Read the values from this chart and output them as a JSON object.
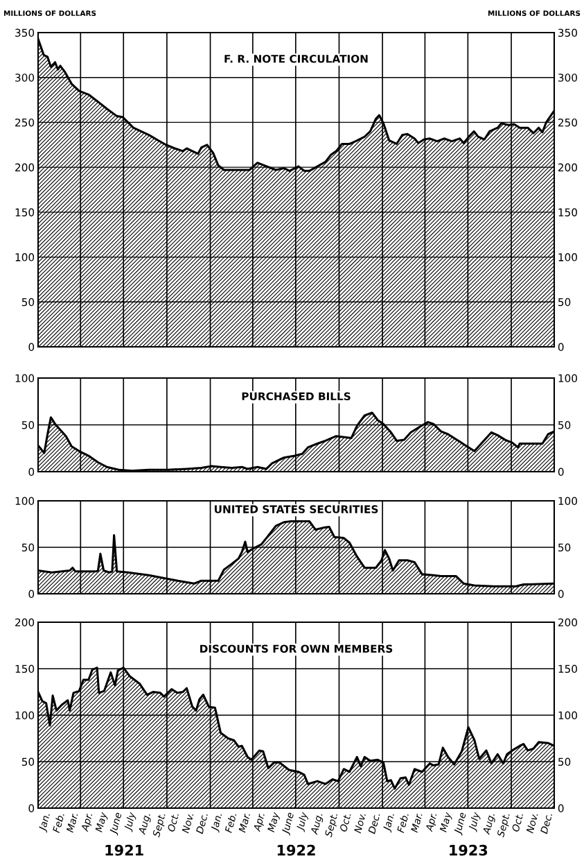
{
  "chart_data": [
    {
      "type": "area",
      "title": "F. R. NOTE CIRCULATION",
      "ylabel": "MILLIONS OF DOLLARS",
      "y2label": "MILLIONS OF DOLLARS",
      "series": [
        {
          "color": "#000000",
          "x": [
            "1921-01-01",
            "1921-01-13",
            "1921-01-21",
            "1921-01-28",
            "1921-02-06",
            "1921-02-12",
            "1921-02-17",
            "1921-02-27",
            "1921-03-13",
            "1921-03-29",
            "1921-04-18",
            "1921-05-08",
            "1921-05-27",
            "1921-06-17",
            "1921-06-29",
            "1921-07-22",
            "1921-08-24",
            "1921-09-09",
            "1921-09-29",
            "1921-10-18",
            "1921-11-04",
            "1921-11-12",
            "1921-11-24",
            "1921-12-06",
            "1921-12-13",
            "1921-12-25",
            "1922-01-07",
            "1922-01-18",
            "1922-01-30",
            "1922-02-24",
            "1922-03-25",
            "1922-04-11",
            "1922-04-26",
            "1922-05-20",
            "1922-06-06",
            "1922-06-18",
            "1922-07-07",
            "1922-07-19",
            "1922-07-30",
            "1922-08-16",
            "1922-09-02",
            "1922-09-14",
            "1922-09-25",
            "1922-10-07",
            "1922-10-23",
            "1922-11-05",
            "1922-11-24",
            "1922-12-06",
            "1922-12-18",
            "1922-12-25",
            "1923-01-03",
            "1923-01-15",
            "1923-01-31",
            "1923-02-12",
            "1923-02-23",
            "1923-03-10",
            "1923-03-18",
            "1923-03-30",
            "1923-04-11",
            "1923-04-27",
            "1923-05-12",
            "1923-05-28",
            "1923-06-14",
            "1923-06-22",
            "1923-07-03",
            "1923-07-14",
            "1923-07-23",
            "1923-08-05",
            "1923-08-16",
            "1923-09-02",
            "1923-09-10",
            "1923-09-25",
            "1923-10-07",
            "1923-10-19",
            "1923-11-05",
            "1923-11-17",
            "1923-11-28",
            "1923-12-06",
            "1923-12-14",
            "1923-12-31"
          ],
          "values": [
            343,
            325,
            323,
            312,
            317,
            309,
            313,
            306,
            293,
            285,
            281,
            273,
            265,
            257,
            256,
            244,
            236,
            231,
            225,
            221,
            218,
            221,
            218,
            215,
            222,
            225,
            216,
            202,
            197,
            197,
            197,
            205,
            202,
            197,
            199,
            196,
            201,
            196,
            196,
            201,
            206,
            214,
            218,
            226,
            226,
            229,
            234,
            240,
            254,
            258,
            249,
            230,
            226,
            236,
            237,
            232,
            227,
            231,
            232,
            229,
            232,
            229,
            232,
            227,
            234,
            240,
            234,
            231,
            240,
            244,
            249,
            247,
            248,
            244,
            244,
            238,
            244,
            239,
            250,
            263
          ]
        }
      ],
      "xlim": [
        "1921-01-01",
        "1923-12-31"
      ],
      "ylim": [
        0,
        350
      ],
      "yticks": [
        0,
        50,
        100,
        150,
        200,
        250,
        300,
        350
      ],
      "y2lim": [
        0,
        350
      ],
      "y2ticks": [
        0,
        50,
        100,
        150,
        200,
        250,
        300,
        350
      ],
      "tick_labels": "y",
      "grid": "y",
      "ref_lines": [
        {
          "axis": "x",
          "value": "1921-04-01"
        },
        {
          "axis": "x",
          "value": "1921-07-01"
        },
        {
          "axis": "x",
          "value": "1921-10-01"
        },
        {
          "axis": "x",
          "value": "1922-01-01"
        },
        {
          "axis": "x",
          "value": "1922-04-01"
        },
        {
          "axis": "x",
          "value": "1922-07-01"
        },
        {
          "axis": "x",
          "value": "1922-10-01"
        },
        {
          "axis": "x",
          "value": "1923-01-01"
        },
        {
          "axis": "x",
          "value": "1923-04-01"
        },
        {
          "axis": "x",
          "value": "1923-07-01"
        },
        {
          "axis": "x",
          "value": "1923-10-01"
        }
      ]
    },
    {
      "type": "area",
      "title": "PURCHASED BILLS",
      "series": [
        {
          "color": "#000000",
          "x": [
            "1921-01-01",
            "1921-01-14",
            "1921-01-21",
            "1921-01-28",
            "1921-02-06",
            "1921-02-20",
            "1921-03-01",
            "1921-03-13",
            "1921-03-29",
            "1921-04-18",
            "1921-05-08",
            "1921-05-27",
            "1921-06-21",
            "1921-07-22",
            "1921-08-24",
            "1921-10-03",
            "1921-11-12",
            "1921-12-13",
            "1922-01-04",
            "1922-01-23",
            "1922-02-16",
            "1922-03-09",
            "1922-03-21",
            "1922-04-11",
            "1922-04-30",
            "1922-05-12",
            "1922-06-06",
            "1922-06-29",
            "1922-07-15",
            "1922-07-27",
            "1922-08-16",
            "1922-09-02",
            "1922-09-25",
            "1922-10-27",
            "1922-11-08",
            "1922-11-24",
            "1922-12-10",
            "1922-12-22",
            "1923-01-03",
            "1923-01-19",
            "1923-01-31",
            "1923-02-16",
            "1923-03-02",
            "1923-03-18",
            "1923-04-07",
            "1923-04-19",
            "1923-05-05",
            "1923-05-20",
            "1923-06-14",
            "1923-06-29",
            "1923-07-15",
            "1923-07-31",
            "1923-08-20",
            "1923-09-02",
            "1923-09-18",
            "1923-10-03",
            "1923-10-15",
            "1923-10-19",
            "1923-11-05",
            "1923-11-20",
            "1923-12-06",
            "1923-12-18",
            "1923-12-31"
          ],
          "values": [
            28,
            20,
            40,
            58,
            51,
            43,
            38,
            27,
            22,
            17,
            10,
            5,
            2,
            1,
            2,
            2,
            3,
            4,
            6,
            5,
            4,
            5,
            3,
            5,
            3,
            9,
            15,
            17,
            19,
            26,
            30,
            33,
            38,
            36,
            49,
            60,
            63,
            55,
            51,
            42,
            33,
            34,
            42,
            47,
            53,
            51,
            43,
            40,
            32,
            27,
            22,
            31,
            42,
            39,
            34,
            31,
            26,
            30,
            30,
            30,
            30,
            40,
            43
          ]
        }
      ],
      "xlim": [
        "1921-01-01",
        "1923-12-31"
      ],
      "ylim": [
        0,
        100
      ],
      "yticks": [
        0,
        50,
        100
      ],
      "y2lim": [
        0,
        100
      ],
      "y2ticks": [
        0,
        50,
        100
      ],
      "tick_labels": "y",
      "grid": "y",
      "ref_lines": [
        {
          "axis": "x",
          "value": "1921-04-01"
        },
        {
          "axis": "x",
          "value": "1921-07-01"
        },
        {
          "axis": "x",
          "value": "1921-10-01"
        },
        {
          "axis": "x",
          "value": "1922-01-01"
        },
        {
          "axis": "x",
          "value": "1922-04-01"
        },
        {
          "axis": "x",
          "value": "1922-07-01"
        },
        {
          "axis": "x",
          "value": "1922-10-01"
        },
        {
          "axis": "x",
          "value": "1923-01-01"
        },
        {
          "axis": "x",
          "value": "1923-04-01"
        },
        {
          "axis": "x",
          "value": "1923-07-01"
        },
        {
          "axis": "x",
          "value": "1923-10-01"
        }
      ]
    },
    {
      "type": "area",
      "title": "UNITED STATES SECURITIES",
      "series": [
        {
          "color": "#000000",
          "x": [
            "1921-01-01",
            "1921-01-30",
            "1921-03-09",
            "1921-03-15",
            "1921-03-21",
            "1921-05-04",
            "1921-05-08",
            "1921-05-13",
            "1921-05-20",
            "1921-06-01",
            "1921-06-07",
            "1921-06-11",
            "1921-06-17",
            "1921-07-11",
            "1921-08-24",
            "1921-10-03",
            "1921-11-04",
            "1921-11-28",
            "1921-12-13",
            "1922-01-18",
            "1922-01-30",
            "1922-02-15",
            "1922-03-02",
            "1922-03-09",
            "1922-03-16",
            "1922-03-21",
            "1922-04-03",
            "1922-04-19",
            "1922-04-30",
            "1922-05-20",
            "1922-06-06",
            "1922-06-21",
            "1922-07-07",
            "1922-07-30",
            "1922-08-12",
            "1922-08-28",
            "1922-09-10",
            "1922-09-21",
            "1922-10-11",
            "1922-10-23",
            "1922-11-08",
            "1922-11-24",
            "1922-12-18",
            "1922-12-30",
            "1923-01-06",
            "1923-01-15",
            "1923-01-23",
            "1923-02-05",
            "1923-02-23",
            "1923-03-10",
            "1923-03-26",
            "1923-04-19",
            "1923-05-05",
            "1923-06-06",
            "1923-06-22",
            "1923-07-15",
            "1923-08-25",
            "1923-10-11",
            "1923-10-27",
            "1923-12-31"
          ],
          "values": [
            25,
            23,
            25,
            28,
            24,
            24,
            25,
            43,
            25,
            23,
            24,
            63,
            24,
            23,
            20,
            16,
            13,
            11,
            14,
            14,
            26,
            32,
            38,
            45,
            56,
            45,
            49,
            53,
            60,
            73,
            77,
            78,
            78,
            78,
            69,
            71,
            72,
            61,
            60,
            55,
            40,
            28,
            28,
            36,
            47,
            38,
            25,
            36,
            36,
            34,
            21,
            20,
            19,
            19,
            11,
            9,
            8,
            8,
            10,
            11
          ]
        }
      ],
      "xlim": [
        "1921-01-01",
        "1923-12-31"
      ],
      "ylim": [
        0,
        100
      ],
      "yticks": [
        0,
        50,
        100
      ],
      "y2lim": [
        0,
        100
      ],
      "y2ticks": [
        0,
        50,
        100
      ],
      "tick_labels": "y",
      "grid": "y",
      "ref_lines": [
        {
          "axis": "x",
          "value": "1921-04-01"
        },
        {
          "axis": "x",
          "value": "1921-07-01"
        },
        {
          "axis": "x",
          "value": "1921-10-01"
        },
        {
          "axis": "x",
          "value": "1922-01-01"
        },
        {
          "axis": "x",
          "value": "1922-04-01"
        },
        {
          "axis": "x",
          "value": "1922-07-01"
        },
        {
          "axis": "x",
          "value": "1922-10-01"
        },
        {
          "axis": "x",
          "value": "1923-01-01"
        },
        {
          "axis": "x",
          "value": "1923-04-01"
        },
        {
          "axis": "x",
          "value": "1923-07-01"
        },
        {
          "axis": "x",
          "value": "1923-10-01"
        }
      ]
    },
    {
      "type": "area",
      "title": "DISCOUNTS FOR OWN MEMBERS",
      "series": [
        {
          "color": "#000000",
          "x": [
            "1921-01-01",
            "1921-01-10",
            "1921-01-18",
            "1921-01-26",
            "1921-02-01",
            "1921-02-09",
            "1921-02-20",
            "1921-03-05",
            "1921-03-09",
            "1921-03-17",
            "1921-03-29",
            "1921-04-07",
            "1921-04-18",
            "1921-04-26",
            "1921-05-06",
            "1921-05-10",
            "1921-05-21",
            "1921-06-04",
            "1921-06-13",
            "1921-06-19",
            "1921-07-01",
            "1921-07-14",
            "1921-08-04",
            "1921-08-20",
            "1921-09-02",
            "1921-09-17",
            "1921-09-25",
            "1921-10-11",
            "1921-10-23",
            "1921-11-04",
            "1921-11-12",
            "1921-11-24",
            "1921-12-02",
            "1921-12-09",
            "1921-12-17",
            "1921-12-29",
            "1922-01-11",
            "1922-01-23",
            "1922-02-08",
            "1922-02-20",
            "1922-03-02",
            "1922-03-09",
            "1922-03-21",
            "1922-03-29",
            "1922-04-15",
            "1922-04-23",
            "1922-05-04",
            "1922-05-16",
            "1922-05-28",
            "1922-06-17",
            "1922-07-07",
            "1922-07-19",
            "1922-07-27",
            "1922-08-16",
            "1922-09-02",
            "1922-09-17",
            "1922-09-29",
            "1922-10-11",
            "1922-10-23",
            "1922-11-08",
            "1922-11-16",
            "1922-11-24",
            "1922-12-06",
            "1922-12-22",
            "1923-01-03",
            "1923-01-11",
            "1923-01-19",
            "1923-01-27",
            "1923-02-08",
            "1923-02-19",
            "1923-02-26",
            "1923-03-10",
            "1923-03-26",
            "1923-04-11",
            "1923-04-19",
            "1923-04-30",
            "1923-05-09",
            "1923-05-20",
            "1923-06-02",
            "1923-06-18",
            "1923-07-02",
            "1923-07-15",
            "1923-07-25",
            "1923-08-09",
            "1923-08-20",
            "1923-09-02",
            "1923-09-14",
            "1923-09-22",
            "1923-10-03",
            "1923-10-19",
            "1923-10-27",
            "1923-11-05",
            "1923-11-17",
            "1923-11-28",
            "1923-12-18",
            "1923-12-31"
          ],
          "values": [
            125,
            115,
            113,
            89,
            121,
            105,
            111,
            116,
            105,
            124,
            126,
            138,
            138,
            149,
            151,
            124,
            126,
            146,
            132,
            148,
            151,
            142,
            134,
            122,
            125,
            124,
            120,
            128,
            124,
            125,
            129,
            109,
            105,
            117,
            122,
            109,
            108,
            81,
            75,
            73,
            66,
            67,
            55,
            52,
            62,
            61,
            43,
            49,
            49,
            41,
            39,
            36,
            26,
            29,
            26,
            31,
            29,
            42,
            39,
            55,
            45,
            55,
            51,
            52,
            49,
            29,
            30,
            21,
            32,
            33,
            25,
            42,
            39,
            48,
            46,
            47,
            65,
            55,
            47,
            61,
            87,
            73,
            53,
            62,
            48,
            58,
            48,
            58,
            62,
            67,
            69,
            62,
            64,
            71,
            70,
            67
          ]
        }
      ],
      "xlim": [
        "1921-01-01",
        "1923-12-31"
      ],
      "ylim": [
        0,
        200
      ],
      "yticks": [
        0,
        50,
        100,
        150,
        200
      ],
      "y2lim": [
        0,
        200
      ],
      "y2ticks": [
        0,
        50,
        100,
        150,
        200
      ],
      "xticks": [
        {
          "value": "1921-01-16",
          "label": "Jan."
        },
        {
          "value": "1921-02-15",
          "label": "Feb."
        },
        {
          "value": "1921-03-16",
          "label": "Mar."
        },
        {
          "value": "1921-04-16",
          "label": "Apr."
        },
        {
          "value": "1921-05-16",
          "label": "May"
        },
        {
          "value": "1921-06-16",
          "label": "June"
        },
        {
          "value": "1921-07-16",
          "label": "July"
        },
        {
          "value": "1921-08-16",
          "label": "Aug."
        },
        {
          "value": "1921-09-16",
          "label": "Sept."
        },
        {
          "value": "1921-10-16",
          "label": "Oct."
        },
        {
          "value": "1921-11-16",
          "label": "Nov."
        },
        {
          "value": "1921-12-16",
          "label": "Dec."
        },
        {
          "value": "1922-01-16",
          "label": "Jan."
        },
        {
          "value": "1922-02-15",
          "label": "Feb."
        },
        {
          "value": "1922-03-16",
          "label": "Mar."
        },
        {
          "value": "1922-04-16",
          "label": "Apr."
        },
        {
          "value": "1922-05-16",
          "label": "May"
        },
        {
          "value": "1922-06-16",
          "label": "June"
        },
        {
          "value": "1922-07-16",
          "label": "July"
        },
        {
          "value": "1922-08-16",
          "label": "Aug."
        },
        {
          "value": "1922-09-16",
          "label": "Sept."
        },
        {
          "value": "1922-10-16",
          "label": "Oct."
        },
        {
          "value": "1922-11-16",
          "label": "Nov."
        },
        {
          "value": "1922-12-16",
          "label": "Dec."
        },
        {
          "value": "1923-01-16",
          "label": "Jan."
        },
        {
          "value": "1923-02-15",
          "label": "Feb."
        },
        {
          "value": "1923-03-16",
          "label": "Mar."
        },
        {
          "value": "1923-04-16",
          "label": "Apr."
        },
        {
          "value": "1923-05-16",
          "label": "May"
        },
        {
          "value": "1923-06-16",
          "label": "June"
        },
        {
          "value": "1923-07-16",
          "label": "July"
        },
        {
          "value": "1923-08-16",
          "label": "Aug."
        },
        {
          "value": "1923-09-16",
          "label": "Sept."
        },
        {
          "value": "1923-10-16",
          "label": "Oct."
        },
        {
          "value": "1923-11-16",
          "label": "Nov."
        },
        {
          "value": "1923-12-16",
          "label": "Dec."
        }
      ],
      "grid": "y",
      "annotations": [
        "1921",
        "1922",
        "1923"
      ],
      "ref_lines": [
        {
          "axis": "x",
          "value": "1921-04-01"
        },
        {
          "axis": "x",
          "value": "1921-07-01"
        },
        {
          "axis": "x",
          "value": "1921-10-01"
        },
        {
          "axis": "x",
          "value": "1922-01-01"
        },
        {
          "axis": "x",
          "value": "1922-04-01"
        },
        {
          "axis": "x",
          "value": "1922-07-01"
        },
        {
          "axis": "x",
          "value": "1922-10-01"
        },
        {
          "axis": "x",
          "value": "1923-01-01"
        },
        {
          "axis": "x",
          "value": "1923-04-01"
        },
        {
          "axis": "x",
          "value": "1923-07-01"
        },
        {
          "axis": "x",
          "value": "1923-10-01"
        }
      ]
    }
  ]
}
